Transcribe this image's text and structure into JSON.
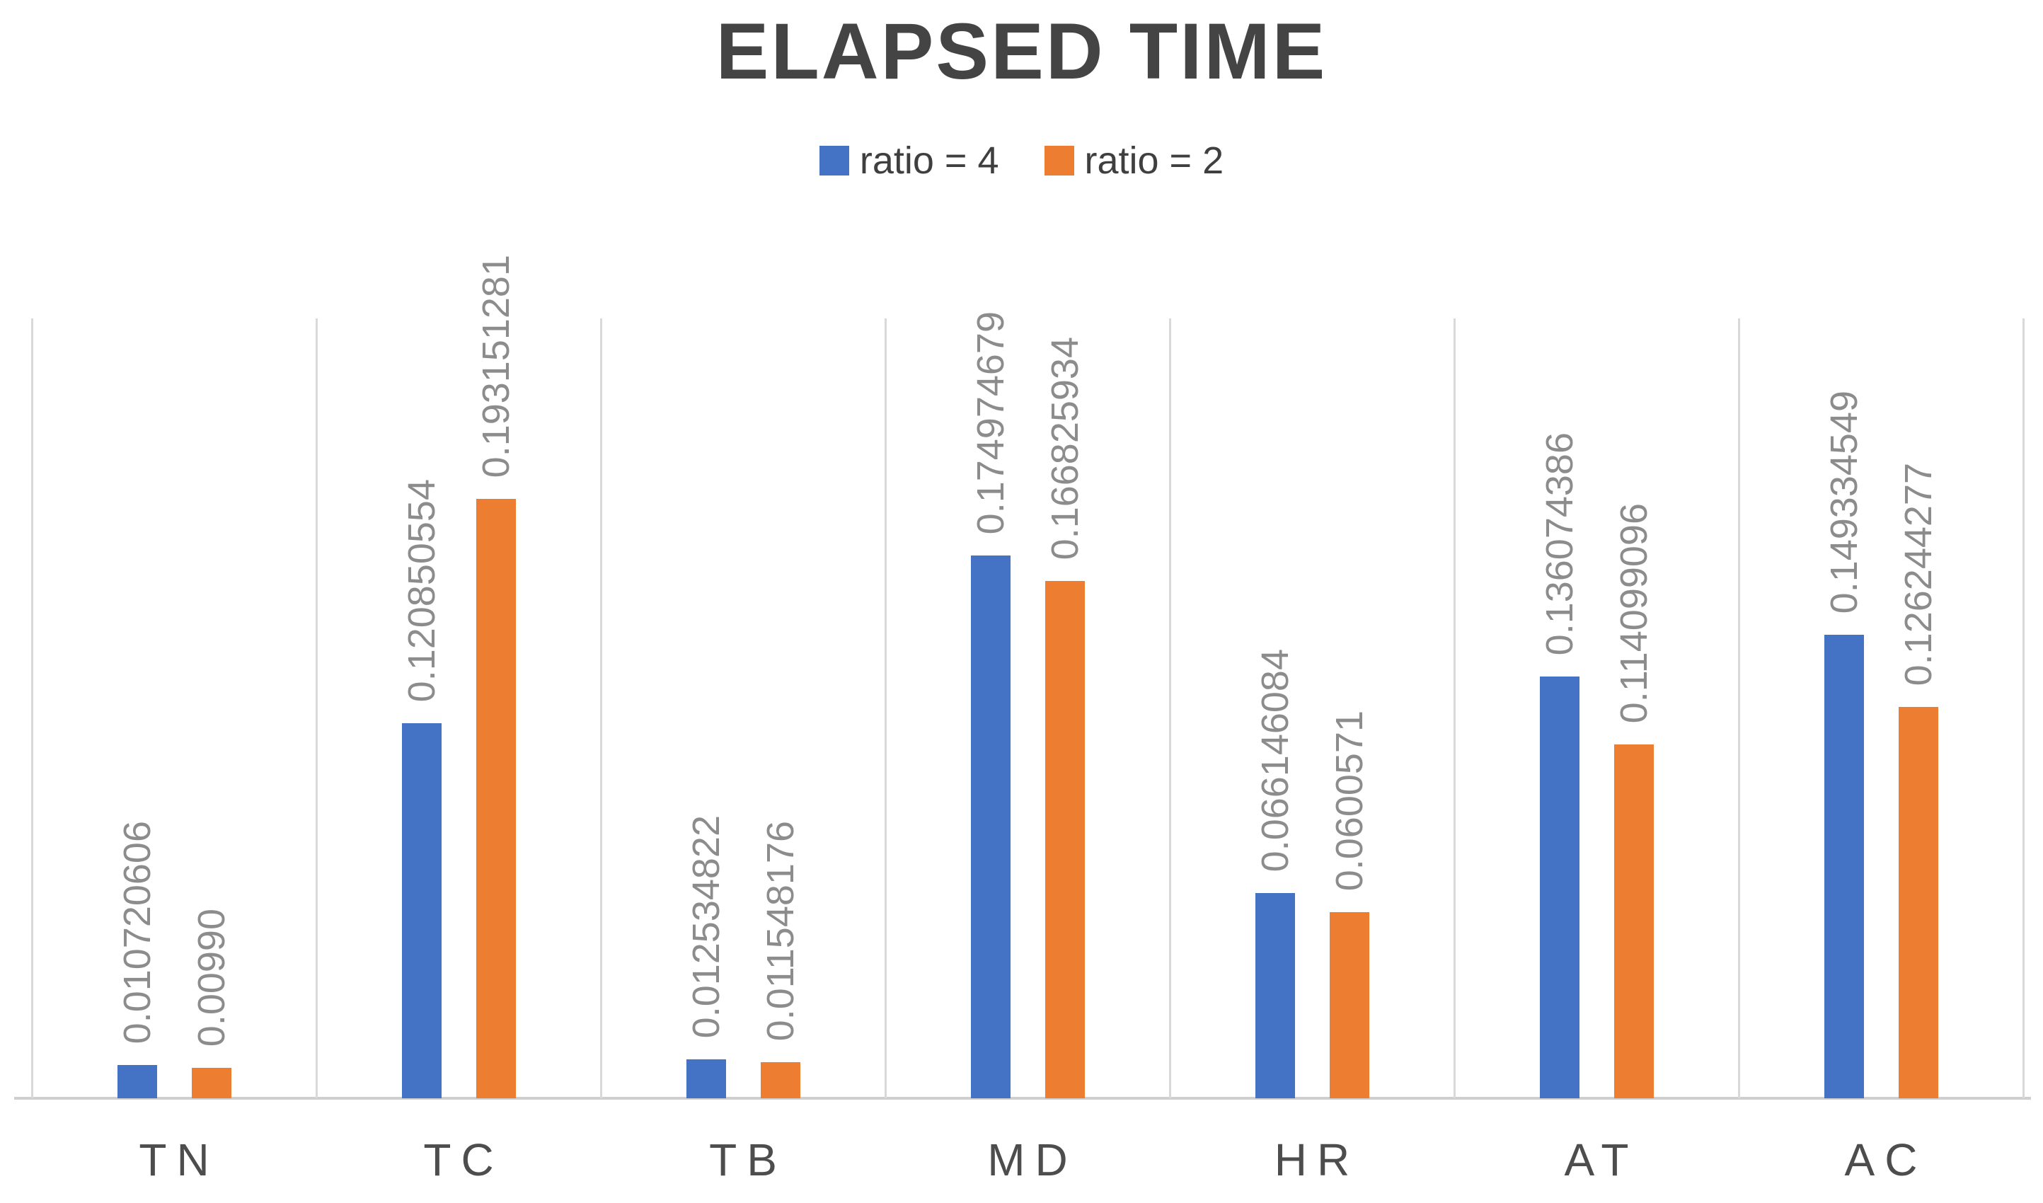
{
  "chart_data": {
    "type": "bar",
    "title": "ELAPSED TIME",
    "categories": [
      "TN",
      "TC",
      "TB",
      "MD",
      "HR",
      "AT",
      "AC"
    ],
    "series": [
      {
        "name": "ratio = 4",
        "color": "#4472C4",
        "values": [
          0.010720606,
          0.120850554,
          0.012534822,
          0.174974679,
          0.066146084,
          0.136074386,
          0.149334549
        ],
        "data_labels": [
          "0.010720606",
          "0.120850554",
          "0.012534822",
          "0.174974679",
          "0.066146084",
          "0.136074386",
          "0.149334549"
        ]
      },
      {
        "name": "ratio = 2",
        "color": "#ED7D31",
        "values": [
          0.0099,
          0.193151281,
          0.011548176,
          0.166825934,
          0.0600571,
          0.114099096,
          0.126244277
        ],
        "data_labels": [
          "0.00990",
          "0.193151281",
          "0.011548176",
          "0.166825934",
          "0.0600571",
          "0.114099096",
          "0.126244277"
        ]
      }
    ],
    "xlabel": "",
    "ylabel": "",
    "ylim": [
      0,
      0.25
    ],
    "y_axis_ticks_visible": false,
    "grid": "vertical category separator lines only",
    "legend_position": "top-center",
    "data_labels_rotated": "90deg, read bottom-to-top, outside end of bars",
    "colors": {
      "title_text": "#444444",
      "legend_text": "#3f3f3f",
      "data_label_text": "#8c8c8c",
      "category_label_text": "#4d4d4d",
      "gridline": "#d9d9d9",
      "axis_line": "#cfcfcf",
      "background": "#ffffff"
    }
  }
}
